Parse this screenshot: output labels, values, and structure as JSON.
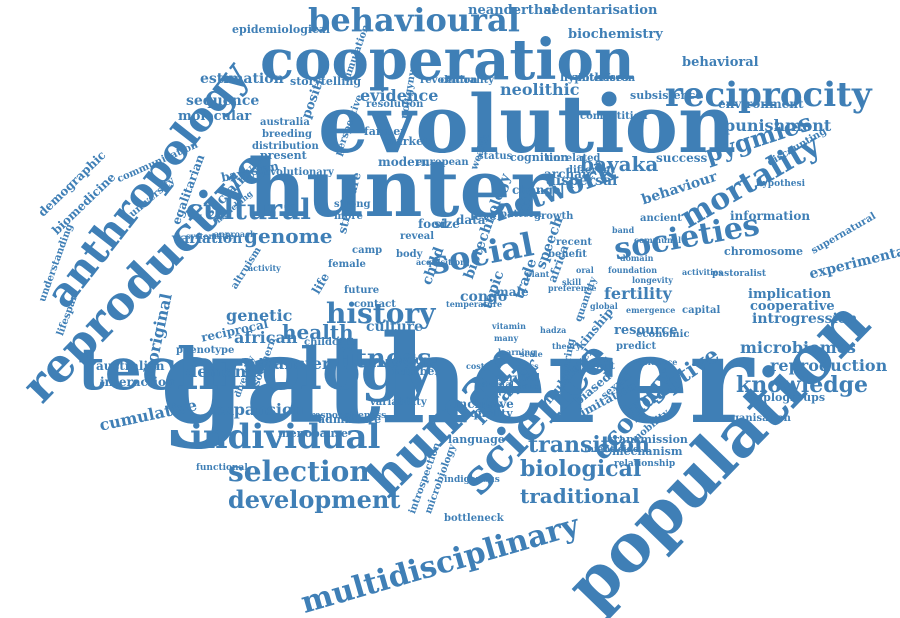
{
  "colors": {
    "word": "#3f7fb6",
    "background": "#ffffff"
  },
  "words": [
    "gatherer",
    "population",
    "hunter",
    "evolution",
    "cooperation",
    "technology",
    "human",
    "reproductive",
    "anthropology",
    "social",
    "network",
    "science",
    "societies",
    "mortality",
    "reciprocity",
    "behavioural",
    "multidisciplinary",
    "individual",
    "history",
    "selection",
    "cultural",
    "ecology",
    "development",
    "fitness",
    "knowledge",
    "biological",
    "traditional",
    "transition",
    "adaptive",
    "pygmies",
    "bayaka",
    "genome",
    "forager",
    "microbiomes",
    "introgression",
    "experimental",
    "reproduction",
    "punishment",
    "expansion",
    "cumulative",
    "health",
    "demand",
    "transfer",
    "african",
    "genetic",
    "sociality",
    "neolithic",
    "evidence",
    "variation",
    "sequence",
    "estimation",
    "demographic",
    "biomedicine",
    "egalitarian",
    "molecular",
    "storytelling",
    "epidemiological",
    "neanderthal",
    "sedentarisation",
    "biochemistry",
    "behavioral",
    "hypotheses",
    "subsistence",
    "environment",
    "aboriginal",
    "australian",
    "interaction",
    "phenotype",
    "culture",
    "group",
    "number",
    "language",
    "quality",
    "menopause",
    "admixture",
    "fertility",
    "resource",
    "implication",
    "cooperative",
    "haplogroups",
    "transmission",
    "mechanism",
    "relationship",
    "chromosome",
    "pastoralist",
    "hypothesi",
    "information",
    "behaviour",
    "dispersal",
    "success",
    "cognition",
    "modern",
    "farmer",
    "present",
    "bayesian",
    "reciprocal",
    "altruism",
    "lifespan",
    "understanding",
    "communication",
    "university",
    "distribution",
    "breeding",
    "australia",
    "resolution",
    "simulation",
    "revolution",
    "centrality",
    "interferon",
    "competition",
    "discounting",
    "organisation",
    "supernatural",
    "biotechnology",
    "congo",
    "male",
    "topic",
    "trade",
    "speech",
    "africa",
    "imitation",
    "multilevel",
    "inclusive",
    "biased",
    "sharing",
    "mobility",
    "infanticide",
    "bottleneck",
    "microbiology",
    "introspection",
    "indigenous",
    "functional",
    "responsiveness",
    "variability",
    "childcare",
    "contact",
    "future",
    "child",
    "life",
    "structure",
    "female",
    "camp",
    "reveal",
    "body",
    "food",
    "size",
    "data",
    "level",
    "more",
    "strong",
    "market",
    "archaic",
    "change",
    "wealth",
    "status",
    "pattern",
    "recent",
    "benefit",
    "growth",
    "ancient",
    "different",
    "unrelated",
    "european",
    "positive",
    "polygyny",
    "survival",
    "kinship",
    "result",
    "predict",
    "capital",
    "economic",
    "quantity",
    "sexual",
    "perspective",
    "evolutionary",
    "southern",
    "diversity",
    "modelling",
    "approach",
    "systematic",
    "emergence",
    "activities",
    "activity",
    "residence",
    "communal",
    "longevity",
    "foundation",
    "preference",
    "acquisition",
    "temperature",
    "vitamin",
    "scale",
    "plant",
    "oral",
    "global",
    "mass",
    "many",
    "rate",
    "skill",
    "band",
    "domain",
    "hadza",
    "theory",
    "learning",
    "parental",
    "cost",
    "age",
    "sex",
    "norm"
  ]
}
